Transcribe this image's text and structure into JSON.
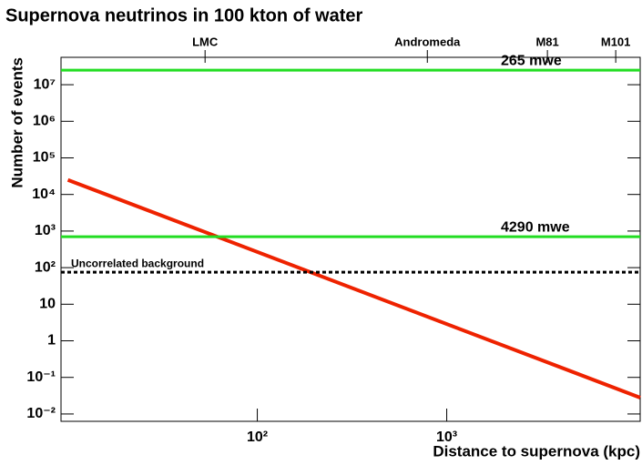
{
  "chart_data": {
    "type": "line",
    "title": "Supernova neutrinos in 100 kton of water",
    "x_label": "Distance to supernova (kpc)",
    "y_label": "Number of events",
    "log_x": true,
    "log_y": true,
    "xlim": [
      9.2,
      10500
    ],
    "ylim": [
      0.0063,
      56000000
    ],
    "xticks": [
      {
        "value": 100,
        "label": "10²"
      },
      {
        "value": 1000,
        "label": "10³"
      }
    ],
    "yticks": [
      {
        "value": 0.01,
        "label": "10⁻²"
      },
      {
        "value": 0.1,
        "label": "10⁻¹"
      },
      1,
      10,
      {
        "value": 100,
        "label": "10²"
      },
      {
        "value": 1000,
        "label": "10³"
      },
      {
        "value": 10000,
        "label": "10⁴"
      },
      {
        "value": 100000,
        "label": "10⁵"
      },
      {
        "value": 1000000,
        "label": "10⁶"
      },
      {
        "value": 10000000,
        "label": "10⁷"
      }
    ],
    "top_axis": {
      "labels": [
        "LMC",
        "Andromeda",
        "M81",
        "M101"
      ],
      "values": [
        53,
        790,
        3400,
        7800
      ]
    },
    "series": [
      {
        "color": "#ee2200",
        "x": [
          10,
          10500
        ],
        "values": [
          25000,
          0.028
        ]
      },
      {
        "name": "265 mwe",
        "color": "#22dd22",
        "x": [
          9.2,
          10500
        ],
        "values": [
          25000000,
          25000000
        ]
      },
      {
        "name": "4290 mwe",
        "color": "#22dd22",
        "x": [
          9.2,
          10500
        ],
        "values": [
          700,
          700
        ]
      },
      {
        "name": "Uncorrelated background",
        "color": "#000000",
        "dashed": true,
        "x": [
          9.2,
          10500
        ],
        "values": [
          75,
          75
        ]
      }
    ]
  }
}
